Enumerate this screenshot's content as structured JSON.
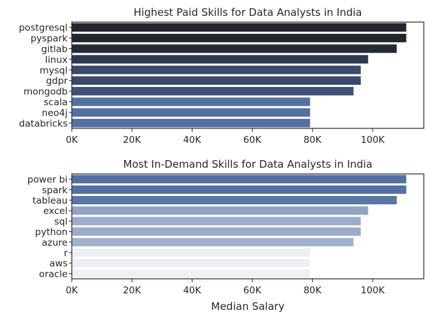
{
  "chart_data": [
    {
      "type": "bar",
      "orientation": "horizontal",
      "title": "Highest Paid Skills for Data Analysts in India",
      "xlabel": "",
      "ylabel": "",
      "categories": [
        "postgresql",
        "pyspark",
        "gitlab",
        "linux",
        "mysql",
        "gdpr",
        "mongodb",
        "scala",
        "neo4j",
        "databricks"
      ],
      "values": [
        111175,
        111175,
        108000,
        98500,
        96050,
        96050,
        93650,
        79200,
        79200,
        79200
      ],
      "colors": [
        "#23252c",
        "#23252c",
        "#252a34",
        "#2f3a52",
        "#3a4a6a",
        "#3a4a6a",
        "#3f5275",
        "#5470a3",
        "#5470a3",
        "#5470a3"
      ],
      "xlim": [
        0,
        117000
      ],
      "xticks": [
        0,
        20000,
        40000,
        60000,
        80000,
        100000
      ],
      "xtick_labels": [
        "0K",
        "20K",
        "40K",
        "60K",
        "80K",
        "100K"
      ],
      "grid": false,
      "legend": "none"
    },
    {
      "type": "bar",
      "orientation": "horizontal",
      "title": "Most In-Demand Skills for Data Analysts in India",
      "xlabel": "Median Salary",
      "ylabel": "",
      "categories": [
        "power bi",
        "spark",
        "tableau",
        "excel",
        "sql",
        "python",
        "azure",
        "r",
        "aws",
        "oracle"
      ],
      "values": [
        111175,
        111175,
        108000,
        98500,
        96050,
        96050,
        93650,
        79200,
        79200,
        79200
      ],
      "colors": [
        "#5470a3",
        "#5470a3",
        "#5a75a6",
        "#93a4c3",
        "#9cacc9",
        "#9cacc9",
        "#a3b2cc",
        "#edeff3",
        "#edeff3",
        "#eef0f3"
      ],
      "xlim": [
        0,
        117000
      ],
      "xticks": [
        0,
        20000,
        40000,
        60000,
        80000,
        100000
      ],
      "xtick_labels": [
        "0K",
        "20K",
        "40K",
        "60K",
        "80K",
        "100K"
      ],
      "grid": false,
      "legend": "none"
    }
  ]
}
